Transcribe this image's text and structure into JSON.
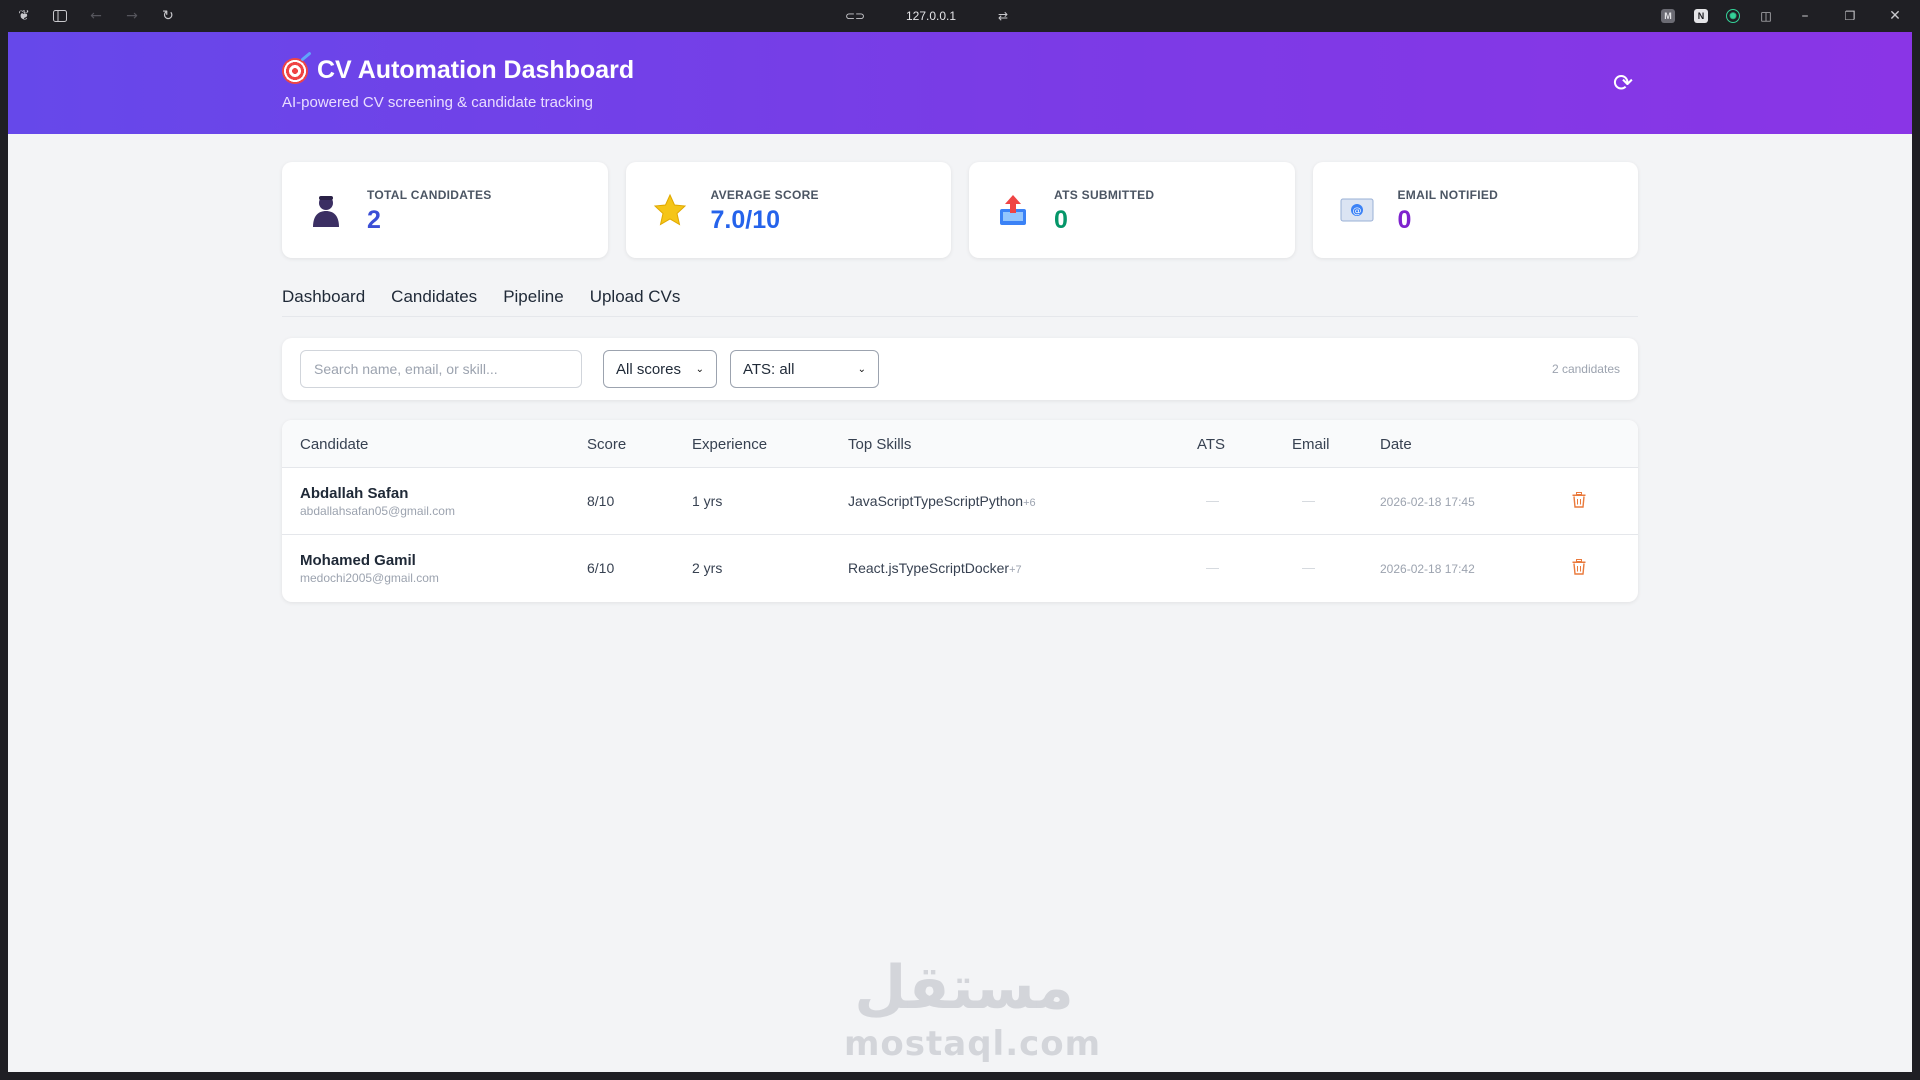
{
  "browser": {
    "url": "127.0.0.1",
    "icons": [
      "workspace-icon",
      "sidebar-toggle-icon",
      "back-icon",
      "forward-icon",
      "reload-icon",
      "link-icon",
      "site-settings-icon",
      "extension-m-icon",
      "notion-icon",
      "chatgpt-icon",
      "split-view-icon",
      "minimize-icon",
      "restore-icon",
      "close-icon"
    ]
  },
  "header": {
    "title": "CV Automation Dashboard",
    "subtitle": "AI-powered CV screening & candidate tracking",
    "title_icon": "target-icon",
    "refresh_icon": "refresh-icon"
  },
  "stats": [
    {
      "label": "TOTAL CANDIDATES",
      "value": "2",
      "icon": "person-icon",
      "color": "#3b4fd6"
    },
    {
      "label": "AVERAGE SCORE",
      "value": "7.0/10",
      "icon": "star-icon",
      "color": "#2563eb"
    },
    {
      "label": "ATS SUBMITTED",
      "value": "0",
      "icon": "outbox-tray-icon",
      "color": "#059669"
    },
    {
      "label": "EMAIL NOTIFIED",
      "value": "0",
      "icon": "email-icon",
      "color": "#7e22ce"
    }
  ],
  "tabs": [
    "Dashboard",
    "Candidates",
    "Pipeline",
    "Upload CVs"
  ],
  "filters": {
    "search_placeholder": "Search name, email, or skill...",
    "score_filter": "All scores",
    "ats_filter": "ATS: all",
    "count_text": "2 candidates"
  },
  "table": {
    "headers": [
      "Candidate",
      "Score",
      "Experience",
      "Top Skills",
      "ATS",
      "Email",
      "Date"
    ],
    "rows": [
      {
        "name": "Abdallah Safan",
        "email": "abdallahsafan05@gmail.com",
        "score": "8/10",
        "experience": "1 yrs",
        "skills": "JavaScriptTypeScriptPython",
        "more": "+6",
        "ats": "—",
        "email_status": "—",
        "date": "2026-02-18 17:45"
      },
      {
        "name": "Mohamed Gamil",
        "email": "medochi2005@gmail.com",
        "score": "6/10",
        "experience": "2 yrs",
        "skills": "React.jsTypeScriptDocker",
        "more": "+7",
        "ats": "—",
        "email_status": "—",
        "date": "2026-02-18 17:42"
      }
    ]
  },
  "watermark": {
    "arabic": "مستقل",
    "latin": "mostaql.com"
  },
  "colors": {
    "header_gradient_start": "#6648ea",
    "header_gradient_end": "#8a35e6",
    "delete": "#ea7a3c"
  }
}
